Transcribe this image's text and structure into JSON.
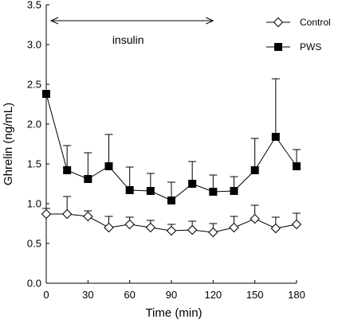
{
  "chart_data": {
    "type": "line",
    "xlabel": "Time (min)",
    "ylabel": "Ghrelin (ng/mL)",
    "xlim": [
      0,
      180
    ],
    "ylim": [
      0,
      3.5
    ],
    "x_ticks": [
      "0",
      "30",
      "60",
      "90",
      "120",
      "150",
      "180"
    ],
    "y_ticks": [
      "0.0",
      "0.5",
      "1.0",
      "1.5",
      "2.0",
      "2.5",
      "3.0",
      "3.5"
    ],
    "grid": false,
    "legend_position": "top-right",
    "annotation": {
      "text": "insulin",
      "x_start": 0,
      "x_end": 120,
      "y": 3.3
    },
    "x": [
      0,
      15,
      30,
      45,
      60,
      75,
      90,
      105,
      120,
      135,
      150,
      165,
      180
    ],
    "series": [
      {
        "name": "Control",
        "marker": "open-diamond",
        "values": [
          0.87,
          0.87,
          0.84,
          0.7,
          0.74,
          0.7,
          0.66,
          0.67,
          0.64,
          0.7,
          0.81,
          0.69,
          0.74
        ],
        "errors": [
          0.07,
          0.22,
          0.07,
          0.14,
          0.09,
          0.09,
          0.08,
          0.11,
          0.11,
          0.14,
          0.17,
          0.14,
          0.14
        ]
      },
      {
        "name": "PWS",
        "marker": "filled-square",
        "values": [
          2.38,
          1.42,
          1.31,
          1.47,
          1.17,
          1.16,
          1.04,
          1.25,
          1.15,
          1.16,
          1.42,
          1.84,
          1.47
        ],
        "errors": [
          0.0,
          0.31,
          0.33,
          0.4,
          0.29,
          0.22,
          0.23,
          0.28,
          0.21,
          0.18,
          0.4,
          0.73,
          0.21
        ]
      }
    ]
  }
}
